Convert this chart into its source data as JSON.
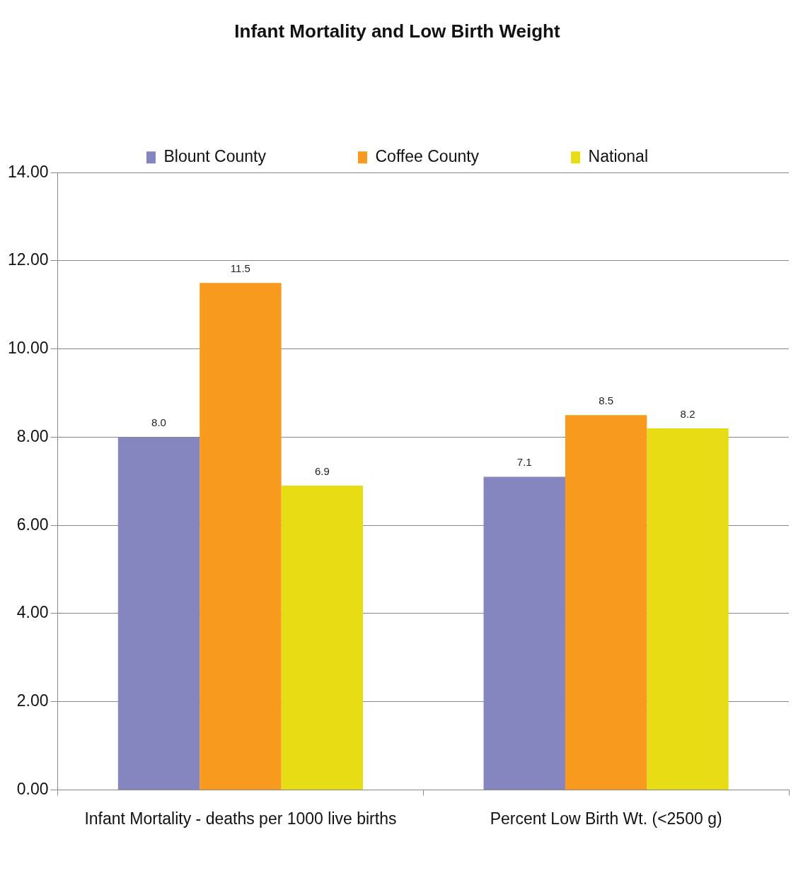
{
  "chart_data": {
    "type": "bar",
    "title": "Infant Mortality and Low Birth Weight",
    "categories": [
      "Infant Mortality - deaths per 1000 live births",
      "Percent Low Birth Wt. (<2500 g)"
    ],
    "series": [
      {
        "name": "Blount County",
        "color": "#8585c0",
        "values": [
          8.0,
          7.1
        ],
        "value_labels": [
          "8.0",
          "7.1"
        ]
      },
      {
        "name": "Coffee County",
        "color": "#f79a1e",
        "values": [
          11.5,
          8.5
        ],
        "value_labels": [
          "11.5",
          "8.5"
        ]
      },
      {
        "name": "National",
        "color": "#e8dc14",
        "values": [
          6.9,
          8.2
        ],
        "value_labels": [
          "6.9",
          "8.2"
        ]
      }
    ],
    "ylim": [
      0,
      14
    ],
    "yticks": [
      {
        "value": 0,
        "label": "0.00"
      },
      {
        "value": 2,
        "label": "2.00"
      },
      {
        "value": 4,
        "label": "4.00"
      },
      {
        "value": 6,
        "label": "6.00"
      },
      {
        "value": 8,
        "label": "8.00"
      },
      {
        "value": 10,
        "label": "10.00"
      },
      {
        "value": 12,
        "label": "12.00"
      },
      {
        "value": 14,
        "label": "14.00"
      }
    ],
    "grid": "y",
    "legend": "top"
  }
}
